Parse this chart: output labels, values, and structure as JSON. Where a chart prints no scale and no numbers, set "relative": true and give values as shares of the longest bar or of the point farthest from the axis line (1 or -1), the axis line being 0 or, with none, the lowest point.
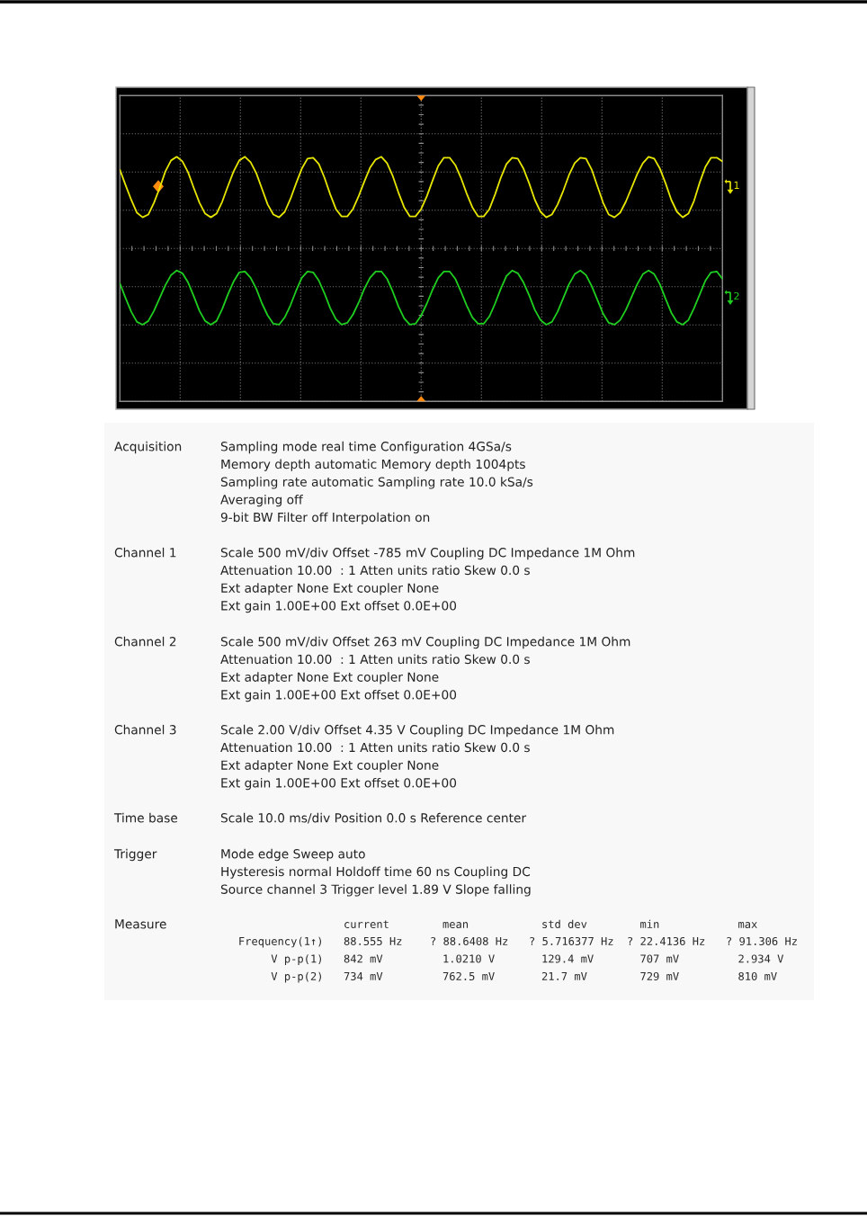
{
  "chart_data": {
    "type": "line",
    "relative": true,
    "grid": true,
    "line_style": "solid",
    "legend": "right",
    "categories": [
      null,
      null,
      null,
      null,
      null,
      null,
      null,
      null,
      null,
      null,
      null,
      null,
      null,
      null,
      null,
      null,
      null,
      null,
      null,
      null,
      null,
      null,
      null,
      null,
      null,
      null,
      null,
      null,
      null,
      null,
      null,
      null,
      null,
      null,
      null,
      null,
      null,
      null,
      null,
      null,
      null,
      null,
      null,
      null,
      null,
      null,
      null,
      null,
      null,
      null,
      null,
      null,
      null,
      null,
      null,
      null,
      null,
      null,
      null,
      null,
      null,
      null,
      null,
      null,
      null,
      null,
      null,
      null,
      null,
      null,
      null,
      null,
      null,
      null,
      null,
      null,
      null,
      null,
      null,
      null,
      null,
      null,
      null,
      null,
      null,
      null,
      null,
      null,
      null,
      null,
      null,
      null,
      null,
      null,
      null,
      null,
      null,
      null,
      null,
      null,
      null,
      null,
      null,
      null,
      null,
      null,
      null
    ],
    "series": [
      {
        "name": "1",
        "color": "#e6e600",
        "values": [
          0.86,
          0.69,
          0.53,
          0.39,
          0.34,
          0.37,
          0.5,
          0.66,
          0.84,
          0.96,
          1.0,
          0.95,
          0.83,
          0.66,
          0.5,
          0.38,
          0.34,
          0.38,
          0.51,
          0.68,
          0.84,
          0.96,
          1.0,
          0.94,
          0.82,
          0.65,
          0.48,
          0.37,
          0.34,
          0.4,
          0.54,
          0.71,
          0.87,
          0.98,
          0.99,
          0.92,
          0.77,
          0.59,
          0.43,
          0.35,
          0.35,
          0.43,
          0.57,
          0.73,
          0.88,
          0.97,
          1.0,
          0.93,
          0.79,
          0.61,
          0.45,
          0.35,
          0.35,
          0.43,
          0.57,
          0.74,
          0.9,
          0.99,
          0.99,
          0.91,
          0.77,
          0.6,
          0.45,
          0.35,
          0.35,
          0.43,
          0.59,
          0.77,
          0.92,
          0.99,
          0.98,
          0.87,
          0.71,
          0.53,
          0.4,
          0.34,
          0.37,
          0.48,
          0.63,
          0.8,
          0.93,
          0.99,
          0.98,
          0.86,
          0.68,
          0.5,
          0.37,
          0.34,
          0.39,
          0.51,
          0.66,
          0.81,
          0.93,
          1.0,
          0.98,
          0.87,
          0.71,
          0.53,
          0.4,
          0.34,
          0.38,
          0.52,
          0.72,
          0.89,
          0.99,
          0.99,
          0.95
        ]
      },
      {
        "name": "2",
        "color": "#1fcf1f",
        "values": [
          -0.38,
          -0.54,
          -0.69,
          -0.8,
          -0.83,
          -0.79,
          -0.68,
          -0.54,
          -0.4,
          -0.29,
          -0.24,
          -0.27,
          -0.37,
          -0.52,
          -0.68,
          -0.79,
          -0.83,
          -0.79,
          -0.66,
          -0.5,
          -0.36,
          -0.26,
          -0.25,
          -0.32,
          -0.44,
          -0.6,
          -0.73,
          -0.82,
          -0.83,
          -0.75,
          -0.62,
          -0.46,
          -0.32,
          -0.25,
          -0.26,
          -0.35,
          -0.49,
          -0.65,
          -0.77,
          -0.83,
          -0.81,
          -0.72,
          -0.59,
          -0.44,
          -0.32,
          -0.25,
          -0.25,
          -0.33,
          -0.47,
          -0.63,
          -0.76,
          -0.83,
          -0.82,
          -0.73,
          -0.6,
          -0.45,
          -0.32,
          -0.25,
          -0.25,
          -0.33,
          -0.47,
          -0.62,
          -0.75,
          -0.82,
          -0.82,
          -0.74,
          -0.6,
          -0.44,
          -0.3,
          -0.24,
          -0.27,
          -0.37,
          -0.51,
          -0.67,
          -0.78,
          -0.83,
          -0.8,
          -0.69,
          -0.54,
          -0.39,
          -0.28,
          -0.24,
          -0.29,
          -0.41,
          -0.56,
          -0.71,
          -0.81,
          -0.83,
          -0.78,
          -0.67,
          -0.53,
          -0.39,
          -0.28,
          -0.24,
          -0.28,
          -0.39,
          -0.55,
          -0.7,
          -0.8,
          -0.83,
          -0.78,
          -0.65,
          -0.5,
          -0.35,
          -0.26,
          -0.25,
          -0.33
        ]
      }
    ],
    "annotations": [
      "Acquisition",
      "Sampling mode real time Configuration 4GSa/s",
      "Memory depth automatic Memory depth 1004pts",
      "Sampling rate automatic Sampling rate 10.0 kSa/s",
      "Averaging off",
      "9-bit BW Filter off Interpolation on",
      "Channel 1",
      "Scale 500 mV/div Offset -785 mV Coupling DC Impedance 1M Ohm",
      "Attenuation 10.00  : 1 Atten units ratio Skew 0.0 s",
      "Ext adapter None Ext coupler None",
      "Ext gain 1.00E+00 Ext offset 0.0E+00",
      "Channel 2",
      "Scale 500 mV/div Offset 263 mV Coupling DC Impedance 1M Ohm",
      "Attenuation 10.00  : 1 Atten units ratio Skew 0.0 s",
      "Ext adapter None Ext coupler None",
      "Ext gain 1.00E+00 Ext offset 0.0E+00",
      "Channel 3",
      "Scale 2.00 V/div Offset 4.35 V Coupling DC Impedance 1M Ohm",
      "Attenuation 10.00  : 1 Atten units ratio Skew 0.0 s",
      "Ext adapter None Ext coupler None",
      "Ext gain 1.00E+00 Ext offset 0.0E+00",
      "Time base",
      "Scale 10.0 ms/div Position 0.0 s Reference center",
      "Trigger",
      "Mode edge Sweep auto",
      "Hysteresis normal Holdoff time 60 ns Coupling DC",
      "Source channel 3 Trigger level 1.89 V Slope falling",
      "Measure",
      "current",
      "mean",
      "std dev",
      "min",
      "max",
      "Frequency(1↑)",
      "88.555 Hz",
      "? 88.6408 Hz",
      "? 5.716377 Hz",
      "? 22.4136 Hz",
      "? 91.306 Hz",
      "V p-p(1)",
      "842 mV",
      "1.0210 V",
      "129.4 mV",
      "707 mV",
      "2.934 V",
      "V p-p(2)",
      "734 mV",
      "762.5 mV",
      "21.7 mV",
      "729 mV",
      "810 mV"
    ]
  }
}
